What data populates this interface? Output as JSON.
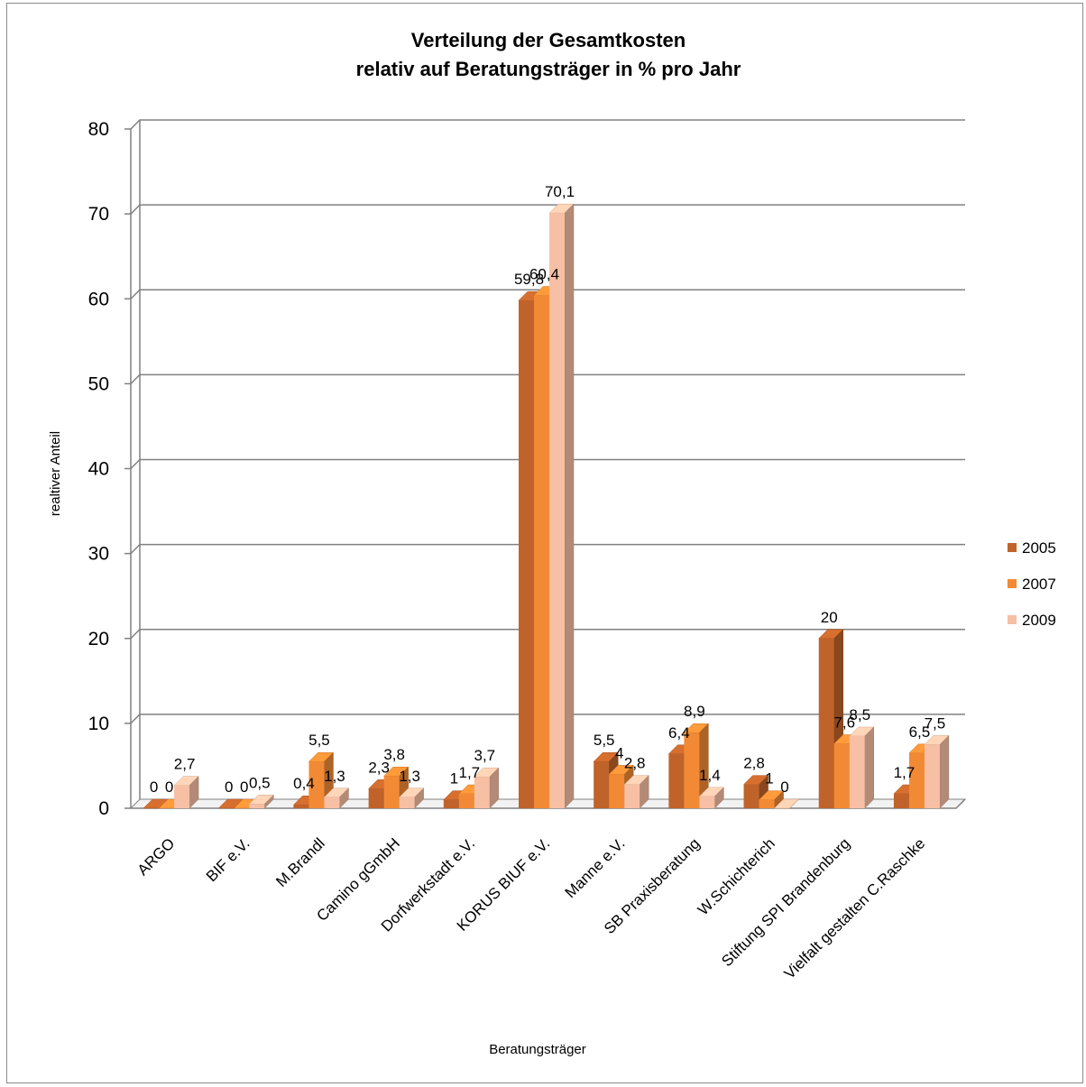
{
  "chart_data": {
    "type": "bar",
    "title": [
      "Verteilung der Gesamtkosten",
      "relativ auf Beratungsträger in % pro Jahr"
    ],
    "xlabel": "Beratungsträger",
    "ylabel": "realtiver Anteil",
    "ylim": [
      0,
      80
    ],
    "yticks": [
      0,
      10,
      20,
      30,
      40,
      50,
      60,
      70,
      80
    ],
    "grid": true,
    "legend_position": "right",
    "categories": [
      "ARGO",
      "BIF e.V.",
      "M.Brandl",
      "Camino gGmbH",
      "Dorfwerkstadt e.V.",
      "KORUS BIUF e.V.",
      "Manne e.V.",
      "SB Praxisberatung",
      "W.Schichterich",
      "Stiftung SPI Brandenburg",
      "Vielfalt gestalten C.Raschke"
    ],
    "series": [
      {
        "name": "2005",
        "color": "#c0632a",
        "values": [
          0,
          0,
          0.4,
          2.3,
          1,
          59.8,
          5.5,
          6.4,
          2.8,
          20,
          1.7
        ],
        "labels": [
          "0",
          "0",
          "0,4",
          "2,3",
          "1",
          "59,8",
          "5,5",
          "6,4",
          "2,8",
          "20",
          "1,7"
        ]
      },
      {
        "name": "2007",
        "color": "#f28a35",
        "values": [
          0,
          0,
          5.5,
          3.8,
          1.7,
          60.4,
          4,
          8.9,
          1,
          7.6,
          6.5
        ],
        "labels": [
          "0",
          "0",
          "5,5",
          "3,8",
          "1,7",
          "60,4",
          "4",
          "8,9",
          "1",
          "7,6",
          "6,5"
        ]
      },
      {
        "name": "2009",
        "color": "#f7bfa4",
        "values": [
          2.7,
          0.5,
          1.3,
          1.3,
          3.7,
          70.1,
          2.8,
          1.4,
          0,
          8.5,
          7.5
        ],
        "labels": [
          "2,7",
          "0,5",
          "1,3",
          "1,3",
          "3,7",
          "70,1",
          "2,8",
          "1,4",
          "0",
          "8,5",
          "7,5"
        ]
      }
    ]
  }
}
